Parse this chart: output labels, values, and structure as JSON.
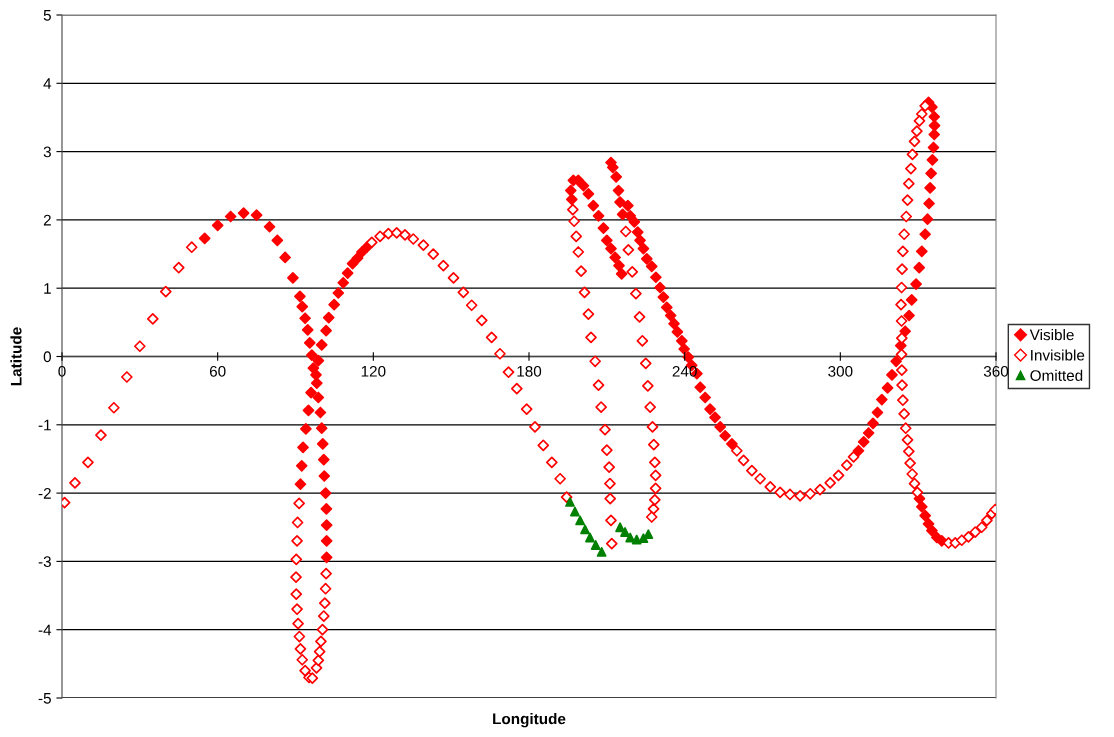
{
  "chart_data": {
    "type": "scatter",
    "xlabel": "Longitude",
    "ylabel": "Latitude",
    "xlim": [
      0,
      360
    ],
    "xticks": [
      0,
      60,
      120,
      180,
      240,
      300,
      360
    ],
    "ylim": [
      -5,
      5
    ],
    "yticks": [
      -5,
      -4,
      -3,
      -2,
      -1,
      0,
      1,
      2,
      3,
      4,
      5
    ],
    "grid": "y",
    "legend": "right",
    "series": [
      {
        "name": "Visible",
        "color": "#ff0000",
        "marker": "diamond",
        "x": [
          55,
          60,
          65,
          70,
          75,
          80,
          83,
          86,
          89,
          91.7,
          92.6,
          93.7,
          94.7,
          95.5,
          96.3,
          96.9,
          96.0,
          95.0,
          94.0,
          92.9,
          92.4,
          91.9,
          102.0,
          102.0,
          102.0,
          101.9,
          101.6,
          101.1,
          100.9,
          100.5,
          100.1,
          99.6,
          98.8,
          98.2,
          97.9,
          98.8,
          100.1,
          101.8,
          102.8,
          104.9,
          106.5,
          108.4,
          110.1,
          112.0,
          113.9,
          115.6,
          117.5,
          196.5,
          196.1,
          197.1,
          199.0,
          201.0,
          202.9,
          204.8,
          206.8,
          208.7,
          210.0,
          211.6,
          213.2,
          214.7,
          215.7,
          211.6,
          212.3,
          213.6,
          214.5,
          215.1,
          216.1,
          218.1,
          219.0,
          220.6,
          221.9,
          222.8,
          224.1,
          225.4,
          227.3,
          228.9,
          230.5,
          231.8,
          233.1,
          234.6,
          235.9,
          237.2,
          238.9,
          239.8,
          241.4,
          242.7,
          244.7,
          246.0,
          247.9,
          249.8,
          251.7,
          253.7,
          255.6,
          258.2,
          307.0,
          309.0,
          310.9,
          312.6,
          314.3,
          316.0,
          318.2,
          319.9,
          321.5,
          323.3,
          325.0,
          326.5,
          327.5,
          329.2,
          330.4,
          331.4,
          332.7,
          333.6,
          334.2,
          334.6,
          335.0,
          335.5,
          335.9,
          336.2,
          336.3,
          336.2,
          335.3,
          334.0,
          330.5,
          331.4,
          332.7,
          334.0,
          335.3,
          337.2,
          339.1
        ],
        "values": [
          1.73,
          1.92,
          2.05,
          2.1,
          2.07,
          1.9,
          1.7,
          1.45,
          1.15,
          0.88,
          0.73,
          0.56,
          0.39,
          0.2,
          0.02,
          -0.17,
          -0.53,
          -0.79,
          -1.06,
          -1.33,
          -1.6,
          -1.87,
          -2.94,
          -2.7,
          -2.47,
          -2.23,
          -2.0,
          -1.75,
          -1.51,
          -1.28,
          -1.05,
          -0.82,
          -0.6,
          -0.39,
          -0.27,
          -0.06,
          0.17,
          0.38,
          0.57,
          0.76,
          0.93,
          1.08,
          1.22,
          1.36,
          1.44,
          1.53,
          1.6,
          2.3,
          2.43,
          2.58,
          2.58,
          2.5,
          2.38,
          2.21,
          2.06,
          1.88,
          1.7,
          1.58,
          1.45,
          1.33,
          1.21,
          2.84,
          2.77,
          2.63,
          2.43,
          2.26,
          2.08,
          2.21,
          2.06,
          1.97,
          1.82,
          1.7,
          1.58,
          1.43,
          1.32,
          1.16,
          1.01,
          0.87,
          0.72,
          0.6,
          0.48,
          0.36,
          0.23,
          0.11,
          -0.01,
          -0.13,
          -0.25,
          -0.45,
          -0.6,
          -0.77,
          -0.89,
          -1.03,
          -1.16,
          -1.28,
          -1.38,
          -1.25,
          -1.12,
          -0.98,
          -0.82,
          -0.63,
          -0.46,
          -0.27,
          -0.07,
          0.16,
          0.37,
          0.6,
          0.83,
          1.06,
          1.3,
          1.54,
          1.79,
          2.01,
          2.24,
          2.47,
          2.68,
          2.88,
          3.06,
          3.25,
          3.38,
          3.51,
          3.65,
          3.72,
          -2.08,
          -2.2,
          -2.33,
          -2.45,
          -2.55,
          -2.65,
          -2.7
        ]
      },
      {
        "name": "Invisible",
        "color": "#ff0000",
        "marker": "diamond",
        "x": [
          1,
          5,
          10,
          15,
          20,
          25,
          30,
          35,
          40,
          45,
          50,
          91.4,
          90.8,
          90.6,
          90.3,
          90.2,
          90.3,
          90.6,
          91.0,
          91.5,
          91.9,
          92.6,
          93.7,
          95.2,
          96.5,
          98.1,
          98.8,
          99.3,
          99.8,
          100.4,
          100.9,
          101.3,
          101.6,
          101.8,
          119.4,
          122.6,
          125.8,
          129.0,
          132.2,
          135.4,
          139.3,
          143.1,
          147.0,
          150.9,
          154.7,
          157.9,
          161.8,
          165.6,
          168.8,
          172.1,
          175.3,
          179.1,
          182.3,
          185.5,
          188.8,
          192.0,
          194.5,
          211.9,
          211.6,
          211.3,
          211.2,
          210.9,
          210.0,
          209.3,
          207.8,
          206.8,
          205.5,
          203.9,
          202.9,
          201.4,
          200.1,
          199.0,
          198.2,
          197.4,
          196.9,
          217.3,
          218.3,
          219.8,
          221.2,
          222.6,
          223.7,
          225.0,
          225.8,
          226.7,
          227.6,
          228.1,
          228.5,
          228.8,
          228.8,
          228.5,
          228.0,
          227.3,
          260.1,
          262.7,
          265.9,
          269.1,
          273.0,
          276.8,
          280.6,
          284.5,
          288.4,
          292.2,
          296.1,
          299.3,
          302.5,
          305.1,
          332.7,
          331.4,
          330.5,
          329.5,
          328.6,
          327.8,
          327.2,
          326.4,
          325.9,
          325.4,
          324.6,
          324.1,
          323.8,
          323.6,
          323.4,
          323.6,
          323.7,
          323.6,
          323.7,
          323.8,
          324.1,
          324.6,
          325.2,
          325.9,
          326.4,
          326.9,
          327.7,
          328.6,
          329.7,
          341.7,
          344.3,
          346.8,
          349.4,
          352.0,
          354.5,
          356.5,
          358.4,
          359.7
        ],
        "values": [
          -2.14,
          -1.85,
          -1.55,
          -1.15,
          -0.75,
          -0.3,
          0.15,
          0.55,
          0.95,
          1.3,
          1.6,
          -2.15,
          -2.43,
          -2.7,
          -2.97,
          -3.23,
          -3.48,
          -3.7,
          -3.91,
          -4.1,
          -4.28,
          -4.44,
          -4.6,
          -4.7,
          -4.71,
          -4.56,
          -4.45,
          -4.32,
          -4.17,
          -4.0,
          -3.8,
          -3.61,
          -3.4,
          -3.18,
          1.67,
          1.76,
          1.8,
          1.81,
          1.78,
          1.72,
          1.63,
          1.5,
          1.33,
          1.15,
          0.94,
          0.75,
          0.53,
          0.28,
          0.04,
          -0.23,
          -0.47,
          -0.77,
          -1.03,
          -1.3,
          -1.55,
          -1.79,
          -2.06,
          -2.74,
          -2.4,
          -2.08,
          -1.86,
          -1.62,
          -1.37,
          -1.07,
          -0.74,
          -0.42,
          -0.07,
          0.28,
          0.62,
          0.94,
          1.25,
          1.53,
          1.76,
          1.98,
          2.15,
          1.83,
          1.56,
          1.24,
          0.92,
          0.58,
          0.23,
          -0.1,
          -0.43,
          -0.74,
          -1.03,
          -1.29,
          -1.55,
          -1.74,
          -1.93,
          -2.1,
          -2.23,
          -2.35,
          -1.38,
          -1.52,
          -1.67,
          -1.79,
          -1.91,
          -1.99,
          -2.02,
          -2.04,
          -2.01,
          -1.95,
          -1.85,
          -1.74,
          -1.59,
          -1.47,
          3.67,
          3.55,
          3.45,
          3.3,
          3.15,
          2.96,
          2.75,
          2.53,
          2.29,
          2.05,
          1.79,
          1.54,
          1.28,
          1.01,
          0.76,
          0.52,
          0.27,
          0.03,
          -0.2,
          -0.42,
          -0.64,
          -0.84,
          -1.05,
          -1.22,
          -1.39,
          -1.56,
          -1.72,
          -1.86,
          -1.99,
          -2.73,
          -2.73,
          -2.69,
          -2.64,
          -2.57,
          -2.5,
          -2.4,
          -2.3,
          -2.24
        ]
      },
      {
        "name": "Omitted",
        "color": "#008000",
        "marker": "triangle",
        "x": [
          195.8,
          197.7,
          199.7,
          201.6,
          203.5,
          205.7,
          208.0,
          215.1,
          217.0,
          219.0,
          221.5,
          224.1,
          226.0
        ],
        "values": [
          -2.13,
          -2.27,
          -2.4,
          -2.53,
          -2.65,
          -2.76,
          -2.86,
          -2.5,
          -2.57,
          -2.65,
          -2.68,
          -2.66,
          -2.6
        ]
      }
    ]
  }
}
